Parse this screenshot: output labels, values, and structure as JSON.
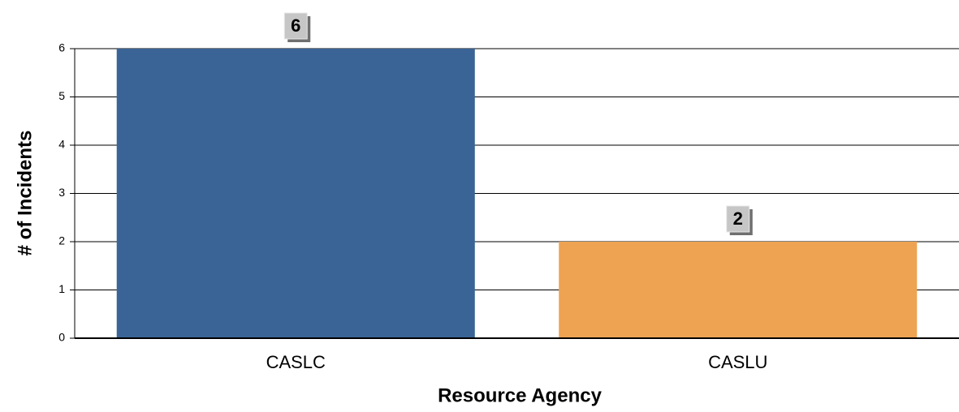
{
  "chart_data": {
    "type": "bar",
    "categories": [
      "CASLC",
      "CASLU"
    ],
    "values": [
      6,
      2
    ],
    "colors": [
      "#3a6496",
      "#eea353"
    ],
    "xlabel": "Resource Agency",
    "ylabel": "# of Incidents",
    "ylim": [
      0,
      6
    ],
    "yticks": [
      0,
      1,
      2,
      3,
      4,
      5,
      6
    ],
    "grid": true
  }
}
